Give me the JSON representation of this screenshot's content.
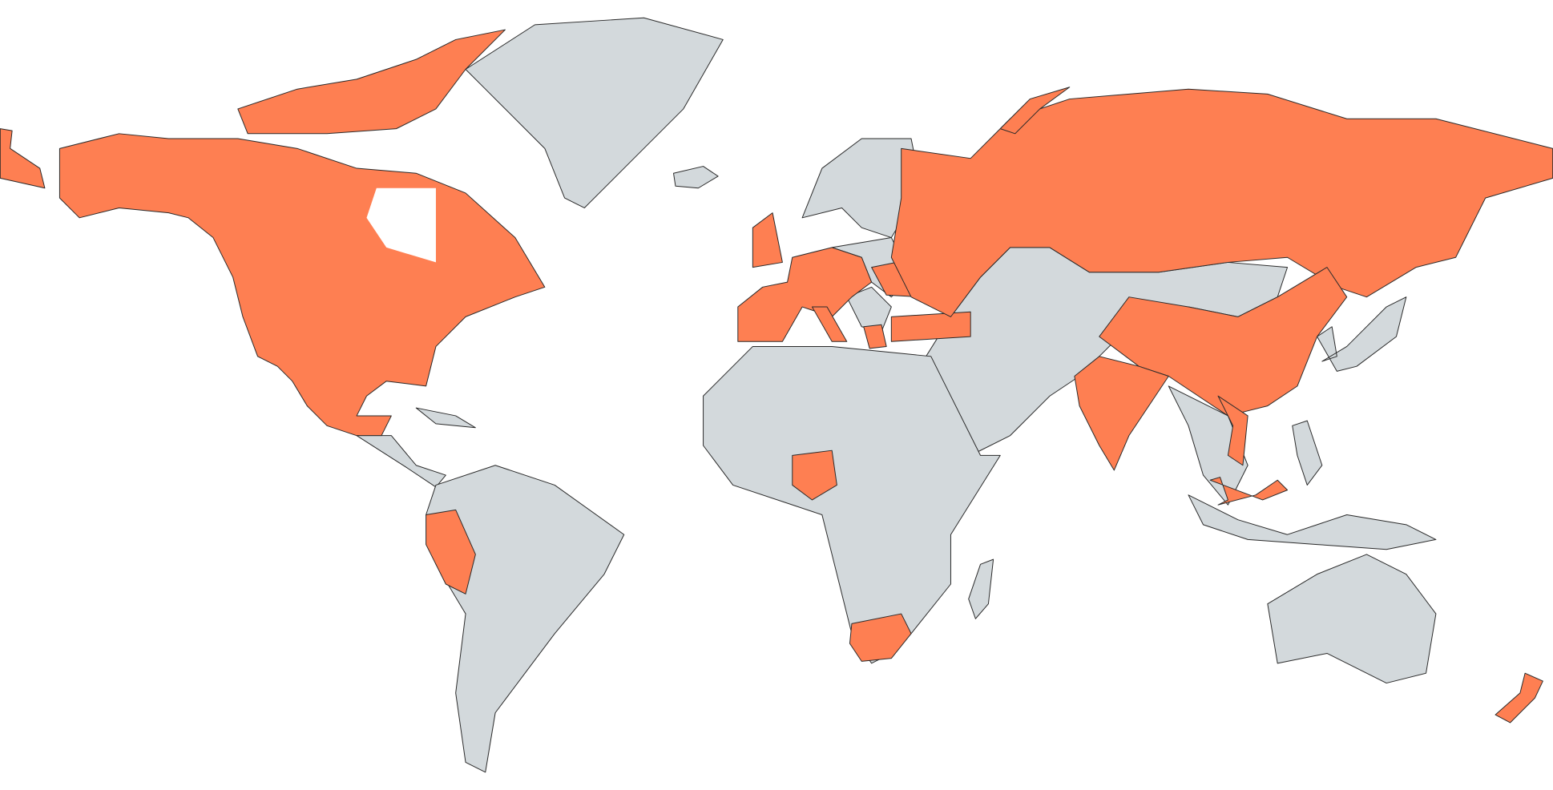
{
  "map": {
    "highlight_color": "#fe7f52",
    "base_color": "#d3d9dc",
    "border_color": "#2a2a2a",
    "background_color": "#ffffff"
  }
}
